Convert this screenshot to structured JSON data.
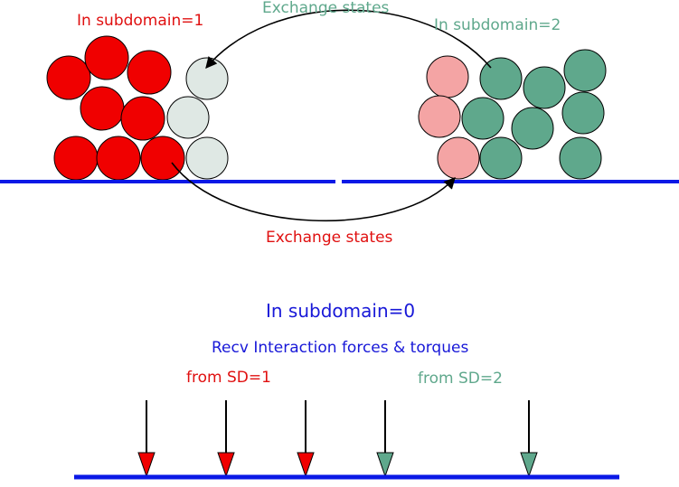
{
  "colors": {
    "sd1": "#f00000",
    "sd1_ghost": "#dfe8e4",
    "sd2": "#5fa88c",
    "sd2_ghost": "#f4a4a4",
    "wall": "#0a18e6",
    "text_blue": "#1818d8",
    "text_red": "#e01010",
    "text_green": "#5fa88c",
    "stroke": "#000000"
  },
  "labels": {
    "sd1_title": "In subdomain=1",
    "sd2_title": "In subdomain=2",
    "exchange_top": "Exchange states",
    "exchange_bottom": "Exchange states",
    "sd0_title": "In subdomain=0",
    "recv_title": "Recv Interaction forces & torques",
    "from_sd1": "from SD=1",
    "from_sd2": "from SD=2"
  },
  "arrows": [
    {
      "source": "sd1"
    },
    {
      "source": "sd1"
    },
    {
      "source": "sd1"
    },
    {
      "source": "sd2"
    },
    {
      "source": "sd2"
    }
  ]
}
